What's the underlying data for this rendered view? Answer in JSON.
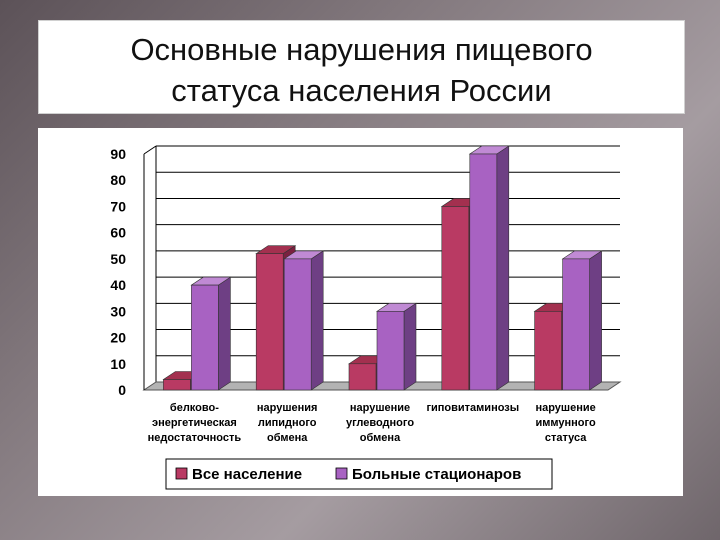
{
  "slide": {
    "title": "Основные нарушения пищевого\nстатуса населения России"
  },
  "colors": {
    "series1": "#b93a63",
    "series1_top": "#a3304f",
    "series1_side": "#7a2140",
    "series2": "#a862c2",
    "series2_top": "#c08ad4",
    "series2_side": "#6e3f84",
    "floor": "#b3b3b3",
    "grid": "#000000"
  },
  "chart_data": {
    "type": "bar",
    "categories": [
      [
        "белково-",
        "энергетическая",
        "недостаточность"
      ],
      [
        "нарушения",
        "липидного",
        "обмена"
      ],
      [
        "нарушение",
        "углеводного",
        "обмена"
      ],
      [
        "гиповитаминозы"
      ],
      [
        "нарушение",
        "иммунного",
        "статуса"
      ]
    ],
    "series": [
      {
        "name": "Все население",
        "values": [
          4,
          52,
          10,
          70,
          30
        ]
      },
      {
        "name": "Больные стационаров",
        "values": [
          40,
          50,
          30,
          90,
          50
        ]
      }
    ],
    "ylim": [
      0,
      90
    ],
    "yticks": [
      0,
      10,
      20,
      30,
      40,
      50,
      60,
      70,
      80,
      90
    ],
    "grid": true,
    "legend": "bottom",
    "style": "3d-clustered-bar"
  }
}
